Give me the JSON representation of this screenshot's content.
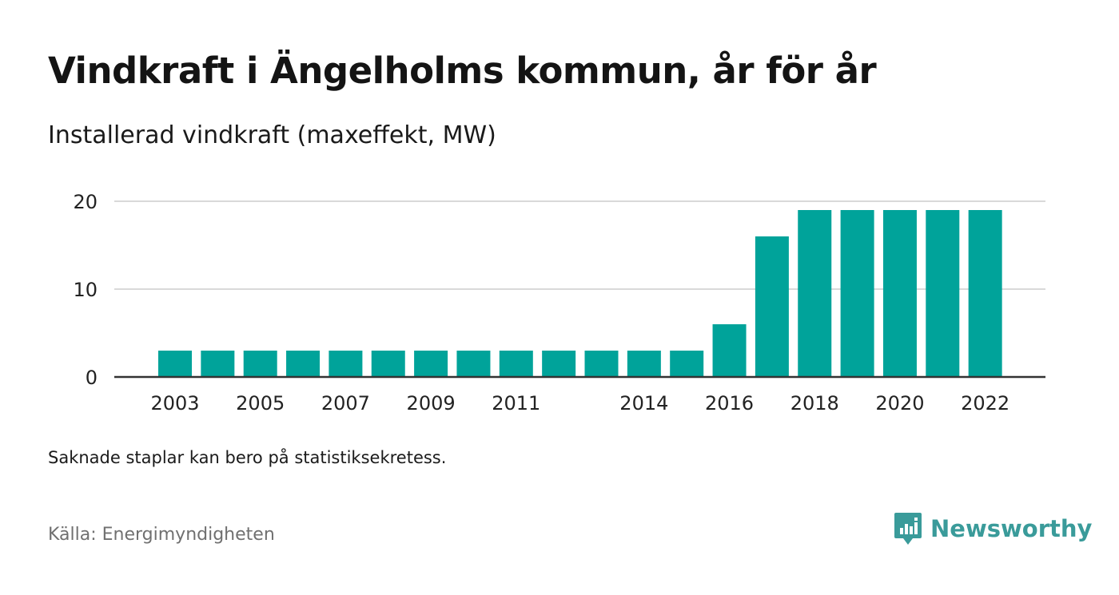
{
  "title": "Vindkraft i Ängelholms kommun, år för år",
  "subtitle": "Installerad vindkraft (maxeffekt, MW)",
  "note": "Saknade staplar kan bero på statistiksekretess.",
  "source": "Källa: Energimyndigheten",
  "brand": {
    "name": "Newsworthy",
    "icon": "newsworthy-logo-icon"
  },
  "colors": {
    "bar": "#00a39a",
    "grid": "#d9d9d9",
    "axis": "#333333",
    "brand": "#3a9b9a"
  },
  "chart_data": {
    "type": "bar",
    "categories": [
      "2003",
      "2004",
      "2005",
      "2006",
      "2007",
      "2008",
      "2009",
      "2010",
      "2011",
      "2012",
      "2013",
      "2014",
      "2015",
      "2016",
      "2017",
      "2018",
      "2019",
      "2020",
      "2021",
      "2022"
    ],
    "values": [
      3,
      3,
      3,
      3,
      3,
      3,
      3,
      3,
      3,
      3,
      3,
      3,
      3,
      6,
      16,
      19,
      19,
      19,
      19,
      19
    ],
    "xtick_labels": [
      "2003",
      "",
      "2005",
      "",
      "2007",
      "",
      "2009",
      "",
      "2011",
      "",
      "",
      "2014",
      "",
      "2016",
      "",
      "2018",
      "",
      "2020",
      "",
      "2022"
    ],
    "ylim": [
      0,
      20
    ],
    "yticks": [
      0,
      10,
      20
    ],
    "grid": true,
    "xlabel": "",
    "ylabel": ""
  }
}
